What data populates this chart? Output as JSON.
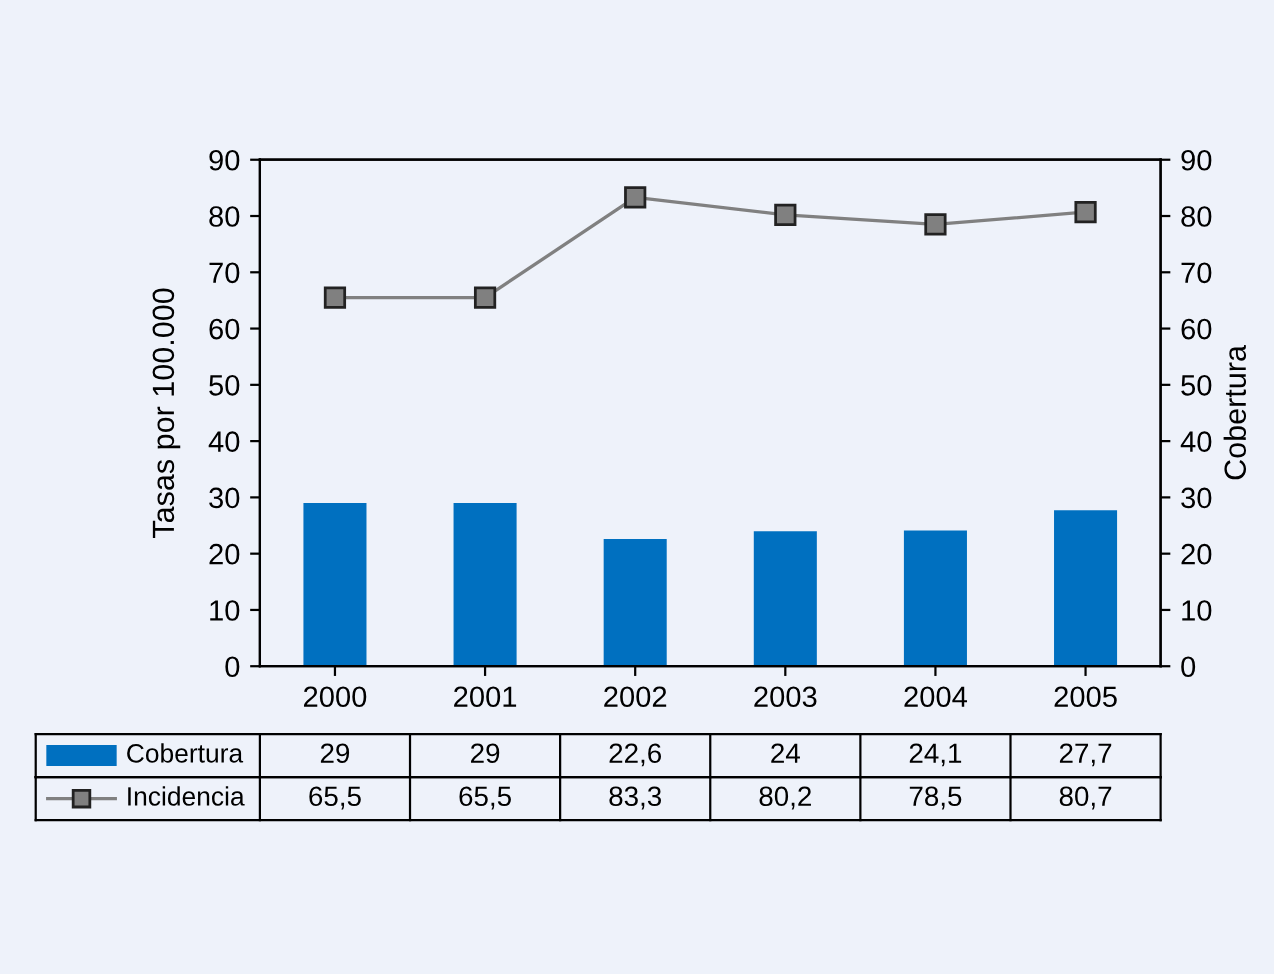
{
  "chart_data": {
    "type": "bar",
    "categories": [
      "2000",
      "2001",
      "2002",
      "2003",
      "2004",
      "2005"
    ],
    "ylabel": "Tasas por 100.000",
    "y2label": "Cobertura",
    "ylim": [
      0,
      90
    ],
    "yticks": [
      0,
      10,
      20,
      30,
      40,
      50,
      60,
      70,
      80,
      90
    ],
    "y2lim": [
      0,
      90
    ],
    "y2ticks": [
      0,
      10,
      20,
      30,
      40,
      50,
      60,
      70,
      80,
      90
    ],
    "legend": "bottom",
    "marker": "square",
    "line_style": "solid",
    "series": [
      {
        "name": "Cobertura",
        "color": "#0070c0",
        "values": [
          29,
          29,
          22.6,
          24,
          24.1,
          27.7
        ],
        "value_labels": [
          "29",
          "29",
          "22,6",
          "24",
          "24,1",
          "27,7"
        ]
      },
      {
        "name": "Incidencia",
        "type": "line",
        "color": "#808080",
        "values": [
          65.5,
          65.5,
          83.3,
          80.2,
          78.5,
          80.7
        ],
        "value_labels": [
          "65,5",
          "65,5",
          "83,3",
          "80,2",
          "78,5",
          "80,7"
        ]
      }
    ]
  }
}
